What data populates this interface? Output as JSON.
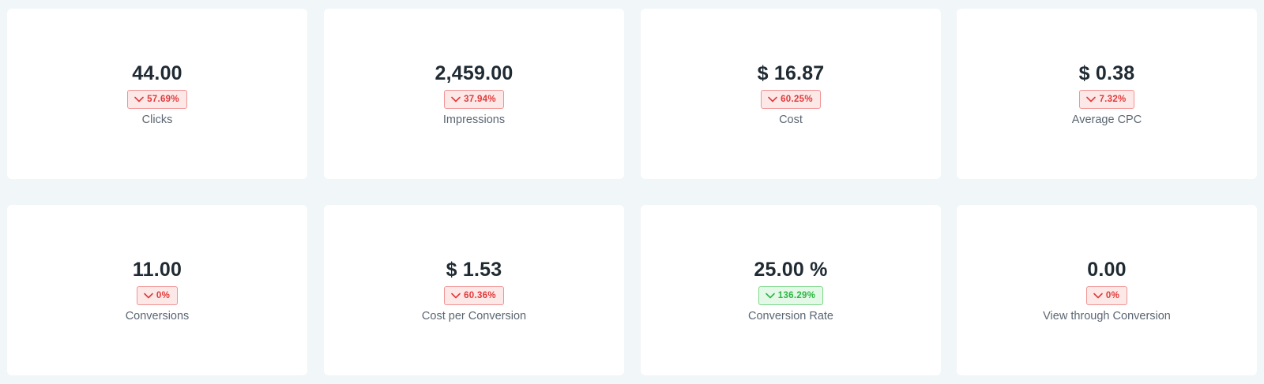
{
  "metrics": [
    {
      "value": "44.00",
      "change": "57.69%",
      "trend": "down",
      "label": "Clicks"
    },
    {
      "value": "2,459.00",
      "change": "37.94%",
      "trend": "down",
      "label": "Impressions"
    },
    {
      "value": "$ 16.87",
      "change": "60.25%",
      "trend": "down",
      "label": "Cost"
    },
    {
      "value": "$ 0.38",
      "change": "7.32%",
      "trend": "down",
      "label": "Average CPC"
    },
    {
      "value": "11.00",
      "change": "0%",
      "trend": "down",
      "label": "Conversions"
    },
    {
      "value": "$ 1.53",
      "change": "60.36%",
      "trend": "down",
      "label": "Cost per Conversion"
    },
    {
      "value": "25.00 %",
      "change": "136.29%",
      "trend": "up",
      "label": "Conversion Rate"
    },
    {
      "value": "0.00",
      "change": "0%",
      "trend": "down",
      "label": "View through Conversion"
    }
  ],
  "colors": {
    "background": "#f1f6f9",
    "card": "#ffffff",
    "negative": "#e13a3a",
    "positive": "#2eb645"
  },
  "icons": {
    "badge_icon": "chevron-down-icon"
  }
}
